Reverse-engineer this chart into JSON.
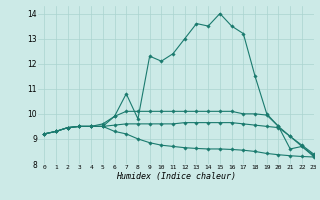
{
  "title": "",
  "xlabel": "Humidex (Indice chaleur)",
  "ylabel": "",
  "bg_color": "#cceae7",
  "line_color": "#1a7a6e",
  "grid_color": "#aad4d0",
  "xlim": [
    -0.5,
    23
  ],
  "ylim": [
    8,
    14.3
  ],
  "yticks": [
    8,
    9,
    10,
    11,
    12,
    13,
    14
  ],
  "xticks": [
    0,
    1,
    2,
    3,
    4,
    5,
    6,
    7,
    8,
    9,
    10,
    11,
    12,
    13,
    14,
    15,
    16,
    17,
    18,
    19,
    20,
    21,
    22,
    23
  ],
  "series": [
    [
      9.2,
      9.3,
      9.45,
      9.5,
      9.5,
      9.5,
      9.9,
      10.8,
      9.8,
      12.3,
      12.1,
      12.4,
      13.0,
      13.6,
      13.5,
      14.0,
      13.5,
      13.2,
      11.5,
      10.0,
      9.5,
      8.6,
      8.7,
      8.3
    ],
    [
      9.2,
      9.3,
      9.45,
      9.5,
      9.5,
      9.6,
      9.9,
      10.1,
      10.1,
      10.1,
      10.1,
      10.1,
      10.1,
      10.1,
      10.1,
      10.1,
      10.1,
      10.0,
      10.0,
      9.95,
      9.5,
      9.1,
      8.75,
      8.4
    ],
    [
      9.2,
      9.3,
      9.45,
      9.5,
      9.5,
      9.5,
      9.55,
      9.6,
      9.6,
      9.6,
      9.6,
      9.6,
      9.65,
      9.65,
      9.65,
      9.65,
      9.65,
      9.6,
      9.55,
      9.5,
      9.45,
      9.1,
      8.7,
      8.35
    ],
    [
      9.2,
      9.3,
      9.45,
      9.5,
      9.5,
      9.5,
      9.3,
      9.2,
      9.0,
      8.85,
      8.75,
      8.7,
      8.65,
      8.62,
      8.6,
      8.6,
      8.58,
      8.55,
      8.5,
      8.42,
      8.37,
      8.33,
      8.3,
      8.28
    ]
  ]
}
